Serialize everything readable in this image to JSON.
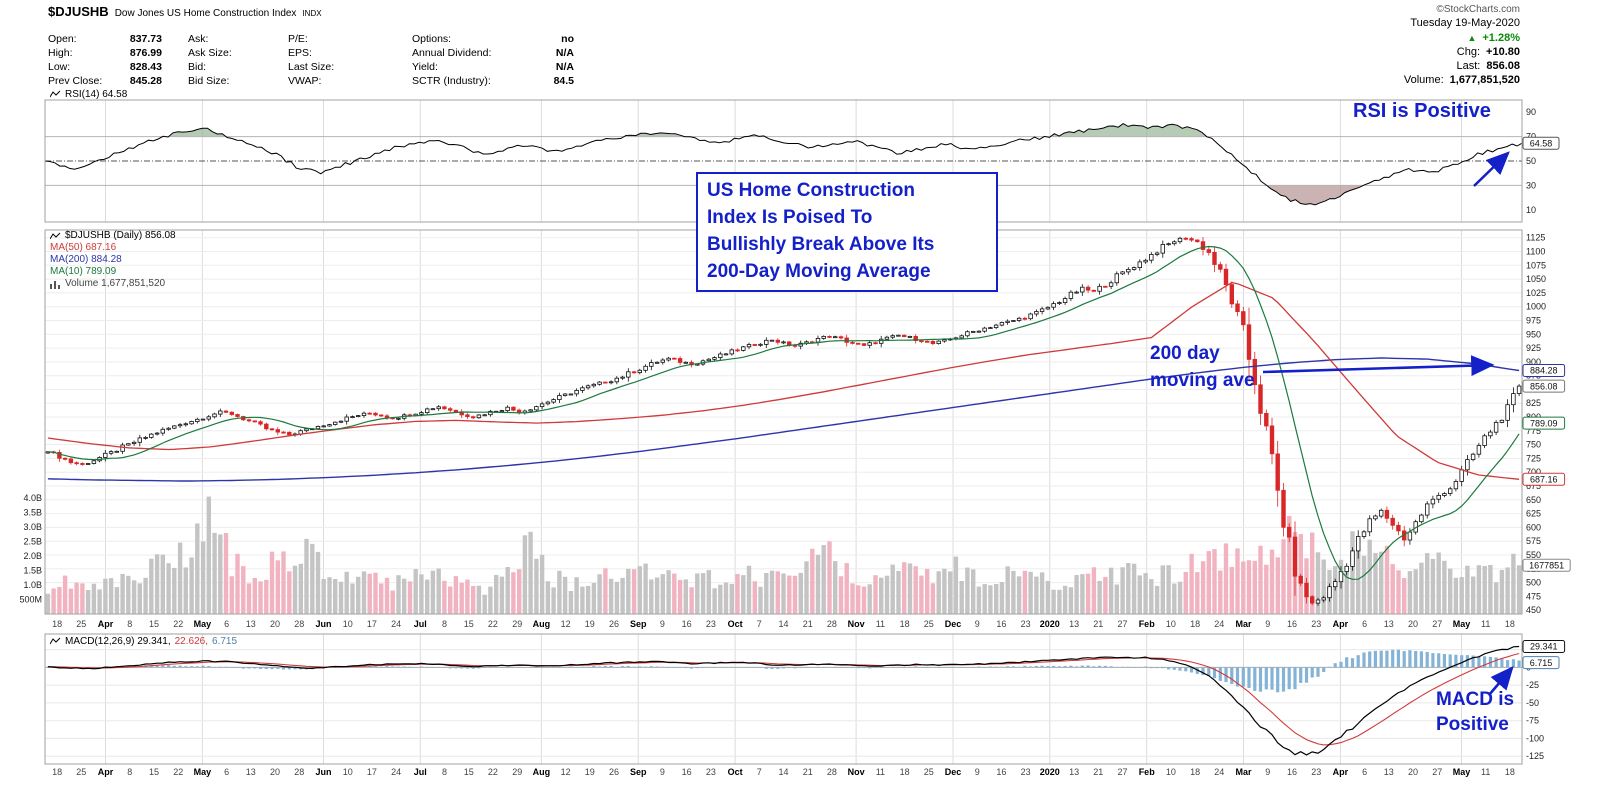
{
  "header": {
    "symbol": "$DJUSHB",
    "name": "Dow Jones US Home Construction Index",
    "type": "INDX",
    "copyright": "©StockCharts.com",
    "date": "Tuesday 19-May-2020"
  },
  "quote": {
    "columns": [
      {
        "rows": [
          {
            "label": "Open:",
            "value": "837.73"
          },
          {
            "label": "High:",
            "value": "876.99"
          },
          {
            "label": "Low:",
            "value": "828.43"
          },
          {
            "label": "Prev Close:",
            "value": "845.28"
          }
        ]
      },
      {
        "rows": [
          {
            "label": "Ask:",
            "value": ""
          },
          {
            "label": "Ask Size:",
            "value": ""
          },
          {
            "label": "Bid:",
            "value": ""
          },
          {
            "label": "Bid Size:",
            "value": ""
          }
        ]
      },
      {
        "rows": [
          {
            "label": "P/E:",
            "value": ""
          },
          {
            "label": "EPS:",
            "value": ""
          },
          {
            "label": "Last Size:",
            "value": ""
          },
          {
            "label": "VWAP:",
            "value": ""
          }
        ]
      },
      {
        "rows": [
          {
            "label": "Options:",
            "value": "no"
          },
          {
            "label": "Annual Dividend:",
            "value": "N/A"
          },
          {
            "label": "Yield:",
            "value": "N/A"
          },
          {
            "label": "SCTR (Industry):",
            "value": "84.5"
          }
        ]
      }
    ],
    "summary": {
      "arrow": "▲",
      "change_pct": "+1.28%",
      "chg_label": "Chg:",
      "chg": "+10.80",
      "last_label": "Last:",
      "last": "856.08",
      "vol_label": "Volume:",
      "volume": "1,677,851,520"
    }
  },
  "legend": {
    "rsi": "RSI(14) 64.58",
    "main": "$DJUSHB (Daily) 856.08",
    "ma50": "MA(50) 687.16",
    "ma200": "MA(200) 884.28",
    "ma10": "MA(10) 789.09",
    "volume": "Volume 1,677,851,520",
    "macd_1": "MACD(12,26,9) 29.341,",
    "macd_2": "22.626,",
    "macd_3": "6.715"
  },
  "annotations": {
    "rsi": "RSI is Positive",
    "headline": "US Home Construction\nIndex Is Poised To\nBullishly Break Above Its\n200-Day Moving Average",
    "ma200": "200 day\nmoving ave",
    "macd": "MACD is\nPositive"
  },
  "colors": {
    "annotation_blue": "#1420c8",
    "candle_down": "#d92626",
    "candle_up_stroke": "#111111",
    "ma50": "#d03a3a",
    "ma200": "#2d35aa",
    "ma10": "#1d7a3e",
    "volume_up": "#c4c4c4",
    "volume_down": "#f2b3c0",
    "macd_line": "#000000",
    "macd_signal": "#d03a3a",
    "macd_hist": "#85b3d6",
    "macd_hist_text": "#4a7fb5",
    "rsi_line": "#000000",
    "rsi_ob_fill": "#8fae8f",
    "rsi_os_fill": "#b18a8a",
    "up_green": "#0b8a0b",
    "grid": "#ededed",
    "month_grid": "#dcdcdc",
    "panel_border": "#a0a0a0"
  },
  "chart_data": [
    {
      "type": "line",
      "panel": "rsi",
      "title": "RSI(14) 64.58",
      "ylim": [
        0,
        100
      ],
      "axis_labels": [
        90,
        70,
        50,
        30,
        10
      ],
      "bands": {
        "overbought": 70,
        "oversold": 30,
        "mid": 50
      },
      "last_label": "64.58",
      "series": [
        {
          "name": "RSI(14)",
          "values": [
            50,
            44,
            47,
            56,
            63,
            69,
            74,
            76,
            70,
            64,
            56,
            44,
            40,
            47,
            54,
            60,
            64,
            66,
            62,
            56,
            60,
            63,
            58,
            62,
            66,
            69,
            72,
            74,
            70,
            65,
            68,
            71,
            66,
            61,
            64,
            67,
            62,
            56,
            60,
            64,
            60,
            63,
            66,
            69,
            72,
            75,
            78,
            80,
            77,
            79,
            74,
            62,
            45,
            30,
            18,
            14,
            20,
            28,
            36,
            43,
            40,
            47,
            55,
            60,
            64.58
          ]
        }
      ]
    },
    {
      "type": "candlestick",
      "panel": "price",
      "title": "$DJUSHB (Daily) 856.08",
      "ylim": [
        443,
        1139
      ],
      "y_tick_min": 450,
      "y_tick_max": 1125,
      "y_tick_step": 25,
      "last_label": "856.08",
      "x_tick_labels": [
        "18",
        "25",
        "Apr",
        "8",
        "15",
        "22",
        "May",
        "6",
        "13",
        "20",
        "28",
        "Jun",
        "10",
        "17",
        "24",
        "Jul",
        "8",
        "15",
        "22",
        "29",
        "Aug",
        "12",
        "19",
        "26",
        "Sep",
        "9",
        "16",
        "23",
        "Oct",
        "7",
        "14",
        "21",
        "28",
        "Nov",
        "11",
        "18",
        "25",
        "Dec",
        "9",
        "16",
        "23",
        "2020",
        "13",
        "21",
        "27",
        "Feb",
        "10",
        "18",
        "24",
        "Mar",
        "9",
        "16",
        "23",
        "Apr",
        "6",
        "13",
        "20",
        "27",
        "May",
        "11",
        "18"
      ],
      "closes": [
        737,
        729,
        718,
        714,
        722,
        731,
        740,
        750,
        759,
        768,
        776,
        783,
        790,
        796,
        803,
        809,
        806,
        797,
        788,
        779,
        772,
        768,
        774,
        780,
        786,
        792,
        798,
        803,
        807,
        803,
        798,
        802,
        808,
        814,
        819,
        813,
        806,
        800,
        806,
        812,
        817,
        809,
        816,
        824,
        832,
        840,
        848,
        855,
        861,
        867,
        874,
        883,
        892,
        900,
        906,
        901,
        896,
        902,
        908,
        915,
        922,
        929,
        935,
        940,
        934,
        929,
        935,
        942,
        947,
        941,
        934,
        929,
        936,
        943,
        948,
        944,
        939,
        933,
        938,
        945,
        952,
        958,
        964,
        970,
        975,
        981,
        989,
        999,
        1010,
        1022,
        1033,
        1027,
        1041,
        1055,
        1068,
        1080,
        1094,
        1108,
        1119,
        1125,
        1117,
        1098,
        1060,
        1012,
        948,
        868,
        770,
        662,
        565,
        492,
        462,
        475,
        502,
        538,
        577,
        610,
        630,
        606,
        578,
        608,
        640,
        658,
        672,
        700,
        732,
        762,
        788,
        812,
        856
      ],
      "overlays": [
        {
          "name": "MA(50)",
          "color_key": "ma50",
          "last_label": "687.16",
          "values": [
            762,
            752,
            744,
            741,
            746,
            756,
            767,
            777,
            786,
            792,
            794,
            791,
            789,
            792,
            797,
            803,
            811,
            821,
            833,
            846,
            860,
            874,
            888,
            901,
            913,
            923,
            933,
            944,
            1000,
            1045,
            1015,
            936,
            850,
            766,
            718,
            695,
            687.16
          ]
        },
        {
          "name": "MA(200)",
          "color_key": "ma200",
          "last_label": "884.28",
          "values": [
            688,
            686,
            685,
            684,
            685,
            687,
            690,
            694,
            699,
            705,
            712,
            720,
            729,
            739,
            750,
            761,
            773,
            785,
            797,
            809,
            821,
            833,
            845,
            857,
            869,
            880,
            890,
            898,
            904,
            907,
            905,
            897,
            884.28
          ]
        },
        {
          "name": "MA(10)",
          "color_key": "ma10",
          "last_label": "789.09",
          "derived_window": 12
        }
      ]
    },
    {
      "type": "bar",
      "panel": "volume",
      "title": "Volume 1,677,851,520",
      "axis_labels": [
        "4.0B",
        "3.5B",
        "3.0B",
        "2.5B",
        "2.0B",
        "1.5B",
        "1.0B",
        "500M"
      ],
      "axis_values": [
        4,
        3.5,
        3,
        2.5,
        2,
        1.5,
        1,
        0.5
      ],
      "last_label": "1677851",
      "last_value_billions": 1.678,
      "values_billions": [
        1.0,
        1.2,
        0.9,
        1.1,
        1.4,
        1.8,
        2.1,
        3.5,
        1.7,
        1.4,
        1.9,
        2.3,
        1.5,
        1.2,
        1.3,
        1.0,
        1.2,
        1.5,
        1.1,
        0.95,
        1.3,
        2.4,
        1.2,
        1.0,
        1.4,
        1.15,
        1.7,
        1.3,
        1.05,
        1.25,
        1.5,
        1.15,
        1.35,
        1.8,
        2.3,
        1.4,
        1.15,
        1.5,
        1.25,
        1.7,
        1.35,
        1.15,
        1.45,
        1.25,
        1.05,
        1.35,
        1.15,
        1.55,
        1.3,
        1.45,
        1.7,
        2.1,
        2.5,
        2.3,
        2.6,
        2.2,
        1.9,
        2.3,
        2.0,
        1.7,
        1.9,
        1.6,
        1.75,
        1.5,
        1.67
      ]
    },
    {
      "type": "macd",
      "panel": "macd",
      "title": "MACD(12,26,9) 29.341, 22.626, 6.715",
      "ylim": [
        -136,
        47
      ],
      "axis_labels": [
        25,
        0,
        -25,
        -50,
        -75,
        -100,
        -125
      ],
      "last_labels": {
        "line": "29.341",
        "signal": "22.626",
        "hist": "6.715"
      },
      "line": [
        1,
        -1,
        -2,
        1,
        3,
        6,
        8,
        9,
        8,
        6,
        3,
        0,
        -1,
        1,
        3,
        4,
        5,
        5,
        3,
        1,
        2,
        3,
        2,
        3,
        4,
        6,
        7,
        8,
        7,
        5,
        6,
        7,
        5,
        3,
        4,
        5,
        3,
        2,
        3,
        4,
        3,
        4,
        5,
        6,
        8,
        10,
        12,
        14,
        13,
        14,
        12,
        5,
        -10,
        -35,
        -70,
        -100,
        -122,
        -118,
        -98,
        -72,
        -48,
        -28,
        -12,
        2,
        14,
        24,
        29.341
      ]
    }
  ]
}
